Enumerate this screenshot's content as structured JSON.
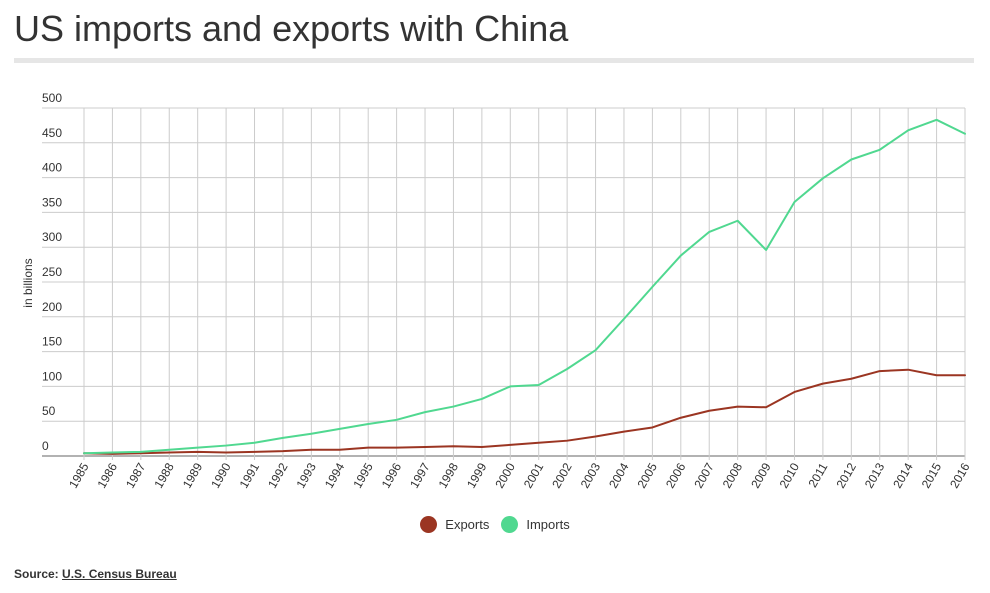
{
  "title": "US imports and exports with China",
  "source": {
    "label": "Source:",
    "link_text": "U.S. Census Bureau"
  },
  "chart_data": {
    "type": "line",
    "title": "US imports and exports with China",
    "xlabel": "",
    "ylabel": "in billions",
    "ylim": [
      0,
      500
    ],
    "yticks": [
      0,
      50,
      100,
      150,
      200,
      250,
      300,
      350,
      400,
      450,
      500
    ],
    "grid": true,
    "legend_position": "bottom",
    "x": [
      "1985",
      "1986",
      "1987",
      "1988",
      "1989",
      "1990",
      "1991",
      "1992",
      "1993",
      "1994",
      "1995",
      "1996",
      "1997",
      "1998",
      "1999",
      "2000",
      "2001",
      "2002",
      "2003",
      "2004",
      "2005",
      "2006",
      "2007",
      "2008",
      "2009",
      "2010",
      "2011",
      "2012",
      "2013",
      "2014",
      "2015",
      "2016"
    ],
    "series": [
      {
        "name": "Exports",
        "color": "#9b3522",
        "values": [
          4,
          3,
          4,
          5,
          6,
          5,
          6,
          7,
          9,
          9,
          12,
          12,
          13,
          14,
          13,
          16,
          19,
          22,
          28,
          35,
          41,
          55,
          65,
          71,
          70,
          92,
          104,
          111,
          122,
          124,
          116,
          116
        ]
      },
      {
        "name": "Imports",
        "color": "#50d890",
        "values": [
          4,
          5,
          6,
          9,
          12,
          15,
          19,
          26,
          32,
          39,
          46,
          52,
          63,
          71,
          82,
          100,
          102,
          125,
          152,
          197,
          243,
          288,
          322,
          338,
          296,
          365,
          399,
          426,
          440,
          468,
          483,
          463
        ]
      }
    ]
  }
}
